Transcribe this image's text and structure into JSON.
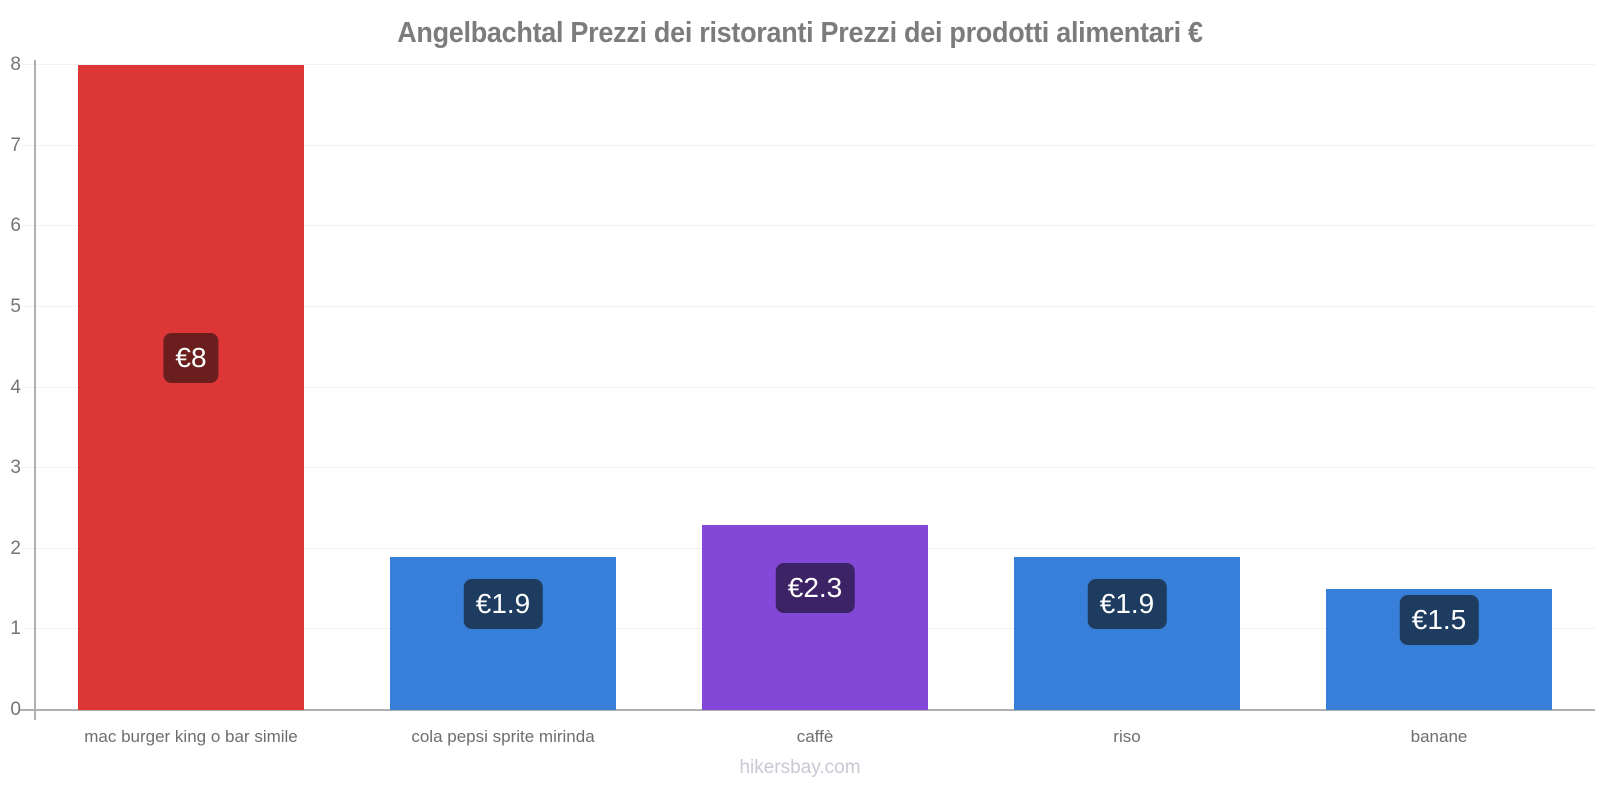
{
  "page": {
    "footer": "hikersbay.com"
  },
  "chart_data": {
    "type": "bar",
    "title": "Angelbachtal Prezzi dei ristoranti Prezzi dei prodotti alimentari €",
    "categories": [
      "mac burger king o bar simile",
      "cola pepsi sprite mirinda",
      "caffè",
      "riso",
      "banane"
    ],
    "values": [
      8,
      1.9,
      2.3,
      1.9,
      1.5
    ],
    "value_labels": [
      "€8",
      "€1.9",
      "€2.3",
      "€1.9",
      "€1.5"
    ],
    "currency": "€",
    "xlabel": "",
    "ylabel": "",
    "ylim": [
      0,
      8
    ],
    "yticks": [
      0,
      1,
      2,
      3,
      4,
      5,
      6,
      7,
      8
    ],
    "grid": true,
    "legend": false,
    "colors": {
      "bar_colors": [
        "#dd3636",
        "#377fd9",
        "#8448d8",
        "#377fd9",
        "#377fd9"
      ],
      "badge_colors": [
        "#6b1e1e",
        "#1d3c5f",
        "#3c2366",
        "#1d3c5f",
        "#1d3c5f"
      ],
      "badge_text": "#ffffff",
      "title_text": "#7c7c7c",
      "ytick_text": "#757575",
      "category_text": "#6e6e6e",
      "watermark_text": "#c7c9d5",
      "axis_line": "#b0b0b0",
      "gridline": "#f2f2f2"
    }
  }
}
